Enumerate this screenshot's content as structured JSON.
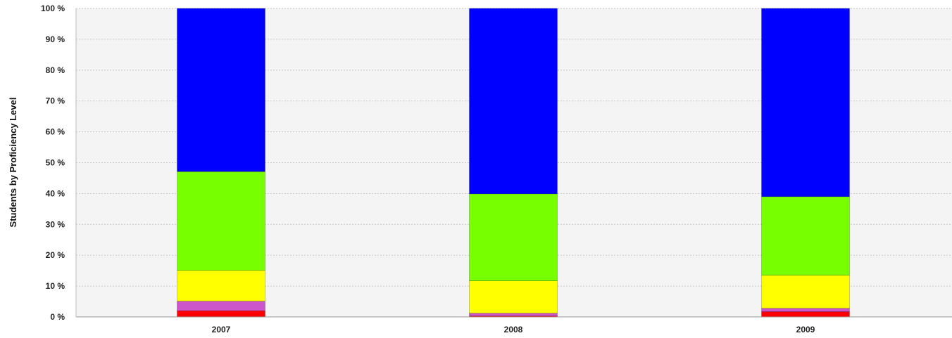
{
  "chart_data": {
    "type": "bar",
    "stacked": true,
    "title": "",
    "xlabel": "",
    "ylabel": "Students by Proficiency Level",
    "ylim": [
      0,
      100
    ],
    "yticks": [
      "0 %",
      "10 %",
      "20 %",
      "30 %",
      "40 %",
      "50 %",
      "60 %",
      "70 %",
      "80 %",
      "90 %",
      "100 %"
    ],
    "grid": true,
    "legend": "none",
    "categories": [
      "2007",
      "2008",
      "2009"
    ],
    "series": [
      {
        "color": "#ff0000",
        "values": [
          2,
          0.3,
          1.7
        ]
      },
      {
        "color": "#cc55cc",
        "values": [
          3.1,
          0.9,
          1.1
        ]
      },
      {
        "color": "#ffff00",
        "values": [
          10,
          10.5,
          10.7
        ]
      },
      {
        "color": "#77ff00",
        "values": [
          32,
          28.2,
          25.5
        ]
      },
      {
        "color": "#0000ff",
        "values": [
          52.9,
          60.1,
          61
        ]
      }
    ]
  }
}
